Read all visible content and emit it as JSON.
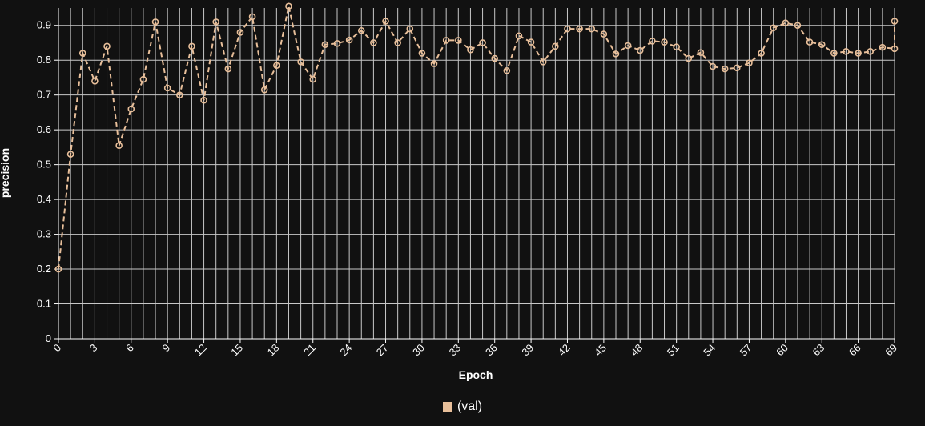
{
  "chart_data": {
    "type": "line",
    "title": "",
    "xlabel": "Epoch",
    "ylabel": "precision",
    "xlim": [
      0,
      69
    ],
    "ylim": [
      0,
      0.95
    ],
    "yticks": [
      "0",
      "0.1",
      "0.2",
      "0.3",
      "0.4",
      "0.5",
      "0.6",
      "0.7",
      "0.8",
      "0.9"
    ],
    "xticks": [
      "0",
      "3",
      "6",
      "9",
      "12",
      "15",
      "18",
      "21",
      "24",
      "27",
      "30",
      "33",
      "36",
      "39",
      "42",
      "45",
      "48",
      "51",
      "54",
      "57",
      "60",
      "63",
      "66",
      "69"
    ],
    "grid": true,
    "legend_position": "bottom-center",
    "series": [
      {
        "name": "(val)",
        "color": "#e8bf9a",
        "line_style": "dashed",
        "marker": "circle",
        "x": [
          0,
          1,
          2,
          3,
          4,
          5,
          6,
          7,
          8,
          9,
          10,
          11,
          12,
          13,
          14,
          15,
          16,
          17,
          18,
          19,
          20,
          21,
          22,
          23,
          24,
          25,
          26,
          27,
          28,
          29,
          30,
          31,
          32,
          33,
          34,
          35,
          36,
          37,
          38,
          39,
          40,
          41,
          42,
          43,
          44,
          45,
          46,
          47,
          48,
          49,
          50,
          51,
          52,
          53,
          54,
          55,
          56,
          57,
          58,
          59,
          60,
          61,
          62,
          63,
          64,
          65,
          66,
          67,
          68,
          69,
          69
        ],
        "y": [
          0.2,
          0.53,
          0.82,
          0.74,
          0.84,
          0.555,
          0.66,
          0.745,
          0.91,
          0.72,
          0.7,
          0.84,
          0.685,
          0.91,
          0.775,
          0.88,
          0.925,
          0.715,
          0.785,
          0.955,
          0.795,
          0.745,
          0.845,
          0.848,
          0.858,
          0.885,
          0.85,
          0.912,
          0.85,
          0.89,
          0.82,
          0.79,
          0.857,
          0.857,
          0.83,
          0.85,
          0.805,
          0.77,
          0.87,
          0.852,
          0.795,
          0.84,
          0.89,
          0.89,
          0.89,
          0.875,
          0.818,
          0.842,
          0.828,
          0.855,
          0.852,
          0.838,
          0.805,
          0.822,
          0.782,
          0.775,
          0.778,
          0.792,
          0.82,
          0.893,
          0.907,
          0.9,
          0.852,
          0.845,
          0.82,
          0.825,
          0.82,
          0.825,
          0.837,
          0.833,
          0.912
        ]
      }
    ]
  },
  "legend": {
    "label": "(val)",
    "color": "#e8bf9a"
  }
}
